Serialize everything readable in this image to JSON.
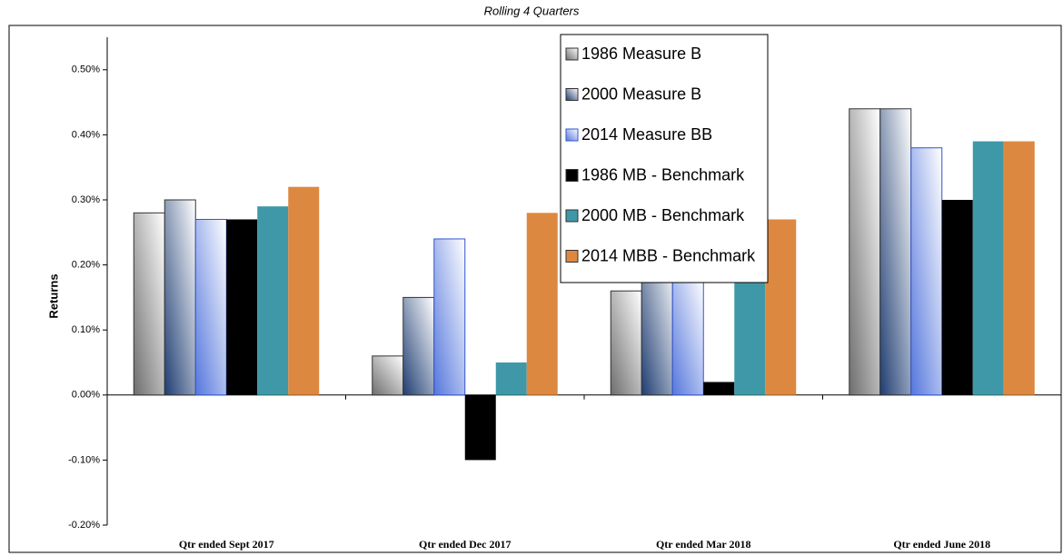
{
  "chart_data": {
    "type": "bar",
    "title": "Rolling 4 Quarters",
    "ylabel": "Returns",
    "categories": [
      "Qtr ended Sept 2017",
      "Qtr ended Dec 2017",
      "Qtr ended Mar 2018",
      "Qtr ended June 2018"
    ],
    "series": [
      {
        "name": "1986 Measure B",
        "color": "#6e6e6e",
        "gradient": true,
        "values": [
          0.28,
          0.06,
          0.16,
          0.44
        ]
      },
      {
        "name": "2000 Measure B",
        "color": "#1f3d72",
        "gradient": true,
        "values": [
          0.3,
          0.15,
          0.22,
          0.44
        ]
      },
      {
        "name": "2014 Measure BB",
        "color": "#5577dd",
        "gradient": true,
        "values": [
          0.27,
          0.24,
          0.18,
          0.38
        ]
      },
      {
        "name": "1986 MB - Benchmark",
        "color": "#000000",
        "values": [
          0.27,
          -0.1,
          0.02,
          0.3
        ]
      },
      {
        "name": "2000 MB - Benchmark",
        "color": "#3f98a8",
        "values": [
          0.29,
          0.05,
          0.25,
          0.39
        ]
      },
      {
        "name": "2014 MBB - Benchmark",
        "color": "#dd8840",
        "values": [
          0.32,
          0.28,
          0.27,
          0.39
        ]
      }
    ],
    "ylim": [
      -0.2,
      0.55
    ],
    "yticks": [
      {
        "value": -0.2,
        "label": "-0.20%"
      },
      {
        "value": -0.1,
        "label": "-0.10%"
      },
      {
        "value": 0,
        "label": "0.00%"
      },
      {
        "value": 0.1,
        "label": "0.10%"
      },
      {
        "value": 0.2,
        "label": "0.20%"
      },
      {
        "value": 0.3,
        "label": "0.30%"
      },
      {
        "value": 0.4,
        "label": "0.40%"
      },
      {
        "value": 0.5,
        "label": "0.50%"
      }
    ],
    "grid": false,
    "legend": "upper center"
  }
}
